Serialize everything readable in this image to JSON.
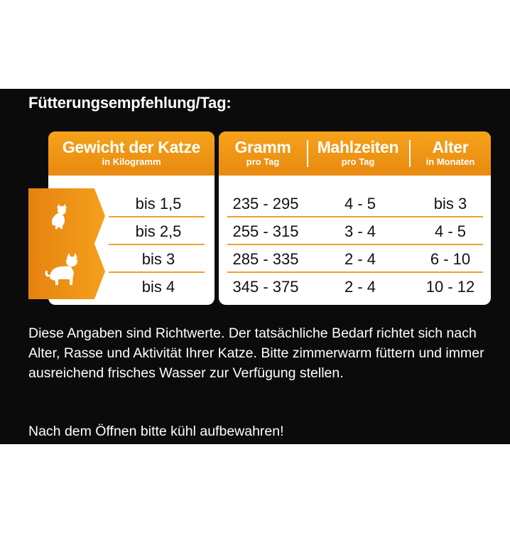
{
  "heading": "Fütterungsempfehlung/Tag:",
  "table": {
    "weight_header": {
      "title": "Gewicht der Katze",
      "sub": "in Kilogramm"
    },
    "columns": [
      {
        "title": "Gramm",
        "sub": "pro Tag"
      },
      {
        "title": "Mahlzeiten",
        "sub": "pro Tag"
      },
      {
        "title": "Alter",
        "sub": "in Monaten"
      }
    ],
    "rows": [
      {
        "weight": "bis 1,5",
        "gram": "235 - 295",
        "meals": "4 - 5",
        "age": "bis 3"
      },
      {
        "weight": "bis 2,5",
        "gram": "255 - 315",
        "meals": "3 - 4",
        "age": "4 - 5"
      },
      {
        "weight": "bis 3",
        "gram": "285 - 335",
        "meals": "2 - 4",
        "age": "6 - 10"
      },
      {
        "weight": "bis 4",
        "gram": "345 - 375",
        "meals": "2 - 4",
        "age": "10 - 12"
      }
    ],
    "icons": [
      "small-cat-icon",
      "large-cat-icon"
    ]
  },
  "note": "Diese Angaben sind Richtwerte. Der tatsächliche Bedarf richtet sich nach Alter, Rasse und Aktivität Ihrer Katze. Bitte zimmerwarm füttern und immer ausreichend frisches Wasser zur Verfügung stellen.",
  "storage": "Nach dem Öffnen bitte kühl aufbewahren!",
  "colors": {
    "accent": "#F29A18",
    "panel": "#0B0B0B",
    "card": "#FFFFFF"
  }
}
